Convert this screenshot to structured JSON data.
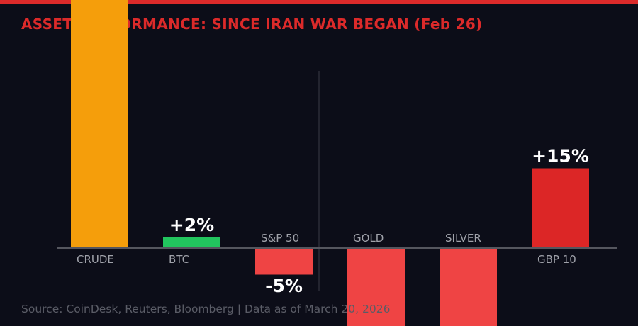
{
  "title": "ASSET PERFORMANCE: SINCE IRAN WAR BEGAN (Feb 26)",
  "footer": "Source: CoinDesk, Reuters, Bloomberg | Data as of March 20, 2026",
  "colors": {
    "accent": "#dc2a2a",
    "background": "#0c0d18",
    "positive_green": "#22c55e",
    "negative": "#ef4444",
    "crude": "#f59e0b",
    "gbp": "#dc2626"
  },
  "chart_data": {
    "type": "bar",
    "categories": [
      "CRUDE",
      "BTC",
      "S&P 50",
      "GOLD",
      "SILVER",
      "GBP 10"
    ],
    "values": [
      60,
      2,
      -5,
      -20,
      -25,
      15
    ],
    "value_labels": [
      "",
      "+2%",
      "-5%",
      "",
      "",
      "+15%"
    ],
    "bar_colors": [
      "#f59e0b",
      "#22c55e",
      "#ef4444",
      "#ef4444",
      "#ef4444",
      "#dc2626"
    ],
    "unit": "%",
    "grid": false,
    "legend": "none"
  }
}
